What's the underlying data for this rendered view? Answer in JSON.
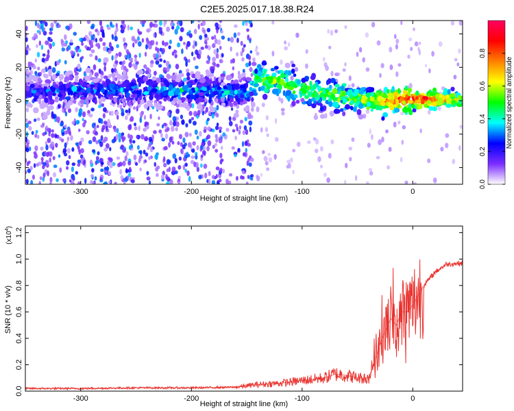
{
  "title": "C2E5.2025.017.18.38.R24",
  "chart_data": [
    {
      "type": "heatmap",
      "xlabel": "Height of straight line (km)",
      "ylabel": "Frequency (Hz)",
      "xlim": [
        -350,
        45
      ],
      "ylim": [
        -50,
        48
      ],
      "xticks": [
        -300,
        -200,
        -100,
        0
      ],
      "xtick_labels": [
        "-300",
        "-200",
        "-100",
        "0"
      ],
      "yticks": [
        -40,
        -20,
        0,
        20,
        40
      ],
      "ytick_labels": [
        "-40",
        "-20",
        "0",
        "20",
        "40"
      ],
      "ridge": {
        "x": [
          -350,
          -300,
          -250,
          -200,
          -150,
          -140,
          -120,
          -100,
          -80,
          -60,
          -40,
          -20,
          0,
          20,
          45
        ],
        "frequency": [
          5,
          6,
          7,
          6,
          5,
          14,
          11,
          7,
          4,
          2,
          0,
          0,
          1,
          1,
          1
        ],
        "amplitude": [
          0.25,
          0.3,
          0.32,
          0.35,
          0.35,
          0.55,
          0.55,
          0.5,
          0.5,
          0.55,
          0.6,
          0.75,
          0.85,
          0.8,
          0.6
        ]
      },
      "colorbar": {
        "label": "Normalized spectral amplitude",
        "range": [
          0,
          1
        ],
        "ticks": [
          0.0,
          0.2,
          0.4,
          0.6,
          0.8
        ],
        "tick_labels": [
          "0.0",
          "0.2",
          "0.4",
          "0.6",
          "0.8"
        ],
        "colors": [
          "#ffffff",
          "#7b2cff",
          "#0000ff",
          "#00ffff",
          "#00ff00",
          "#ffff00",
          "#ff8000",
          "#ff0000",
          "#ff0060"
        ]
      }
    },
    {
      "type": "line",
      "xlabel": "Height of straight line (km)",
      "ylabel": "SNR (10 * v/v)",
      "scale_note_base": "(x10",
      "scale_note_exp": "4",
      "scale_note_end": ")",
      "xlim": [
        -350,
        45
      ],
      "ylim": [
        0,
        1.25
      ],
      "xticks": [
        -300,
        -200,
        -100,
        0
      ],
      "xtick_labels": [
        "-300",
        "-200",
        "-100",
        "0"
      ],
      "yticks": [
        0.0,
        0.2,
        0.4,
        0.6,
        0.8,
        1.0,
        1.2
      ],
      "ytick_labels": [
        "0.0",
        "0.2",
        "0.4",
        "0.6",
        "0.8",
        "1.0",
        "1.2"
      ],
      "color": "#e8302c",
      "series": [
        {
          "x": [
            -350,
            -300,
            -250,
            -200,
            -160,
            -140,
            -120,
            -100,
            -80,
            -70,
            -60,
            -50,
            -40,
            -35,
            -30,
            -25,
            -20,
            -15,
            -10,
            -5,
            0,
            10,
            20,
            30,
            45
          ],
          "y": [
            0.02,
            0.02,
            0.025,
            0.025,
            0.03,
            0.05,
            0.06,
            0.08,
            0.1,
            0.13,
            0.12,
            0.1,
            0.1,
            0.2,
            0.35,
            0.45,
            0.55,
            0.5,
            0.6,
            0.6,
            0.65,
            0.8,
            0.9,
            0.96,
            0.97
          ]
        }
      ]
    }
  ]
}
